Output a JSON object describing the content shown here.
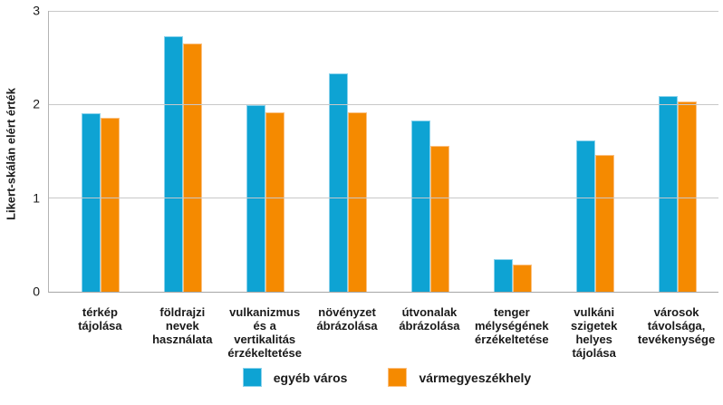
{
  "chart_data": {
    "type": "bar",
    "title": "",
    "xlabel": "",
    "ylabel": "Likert-skálán elért érték",
    "ylim": [
      0,
      3
    ],
    "yticks": [
      0,
      1,
      2,
      3
    ],
    "grid": true,
    "legend_position": "bottom",
    "background_color": "#ffffff",
    "gridline_color": "#c8c8c8",
    "categories": [
      "térkép\ntájolása",
      "földrajzi\nnevek\nhasználata",
      "vulkanizmus\nés a\nvertikalitás\nérzékeltetése",
      "növényzet\nábrázolása",
      "útvonalak\nábrázolása",
      "tenger\nmélységének\nérzékeltetése",
      "vulkáni\nszigetek\nhelyes\ntájolása",
      "városok\ntávolsága,\ntevékenysége"
    ],
    "series": [
      {
        "name": "egyéb város",
        "color": "#0ea3d3",
        "border_color": "#8ad2ec",
        "values": [
          1.91,
          2.73,
          1.99,
          2.33,
          1.83,
          0.35,
          1.62,
          2.09
        ]
      },
      {
        "name": "vármegyeszékhely",
        "color": "#f58a00",
        "border_color": "#fbc080",
        "values": [
          1.86,
          2.65,
          1.92,
          1.92,
          1.56,
          0.29,
          1.46,
          2.03
        ]
      }
    ]
  }
}
